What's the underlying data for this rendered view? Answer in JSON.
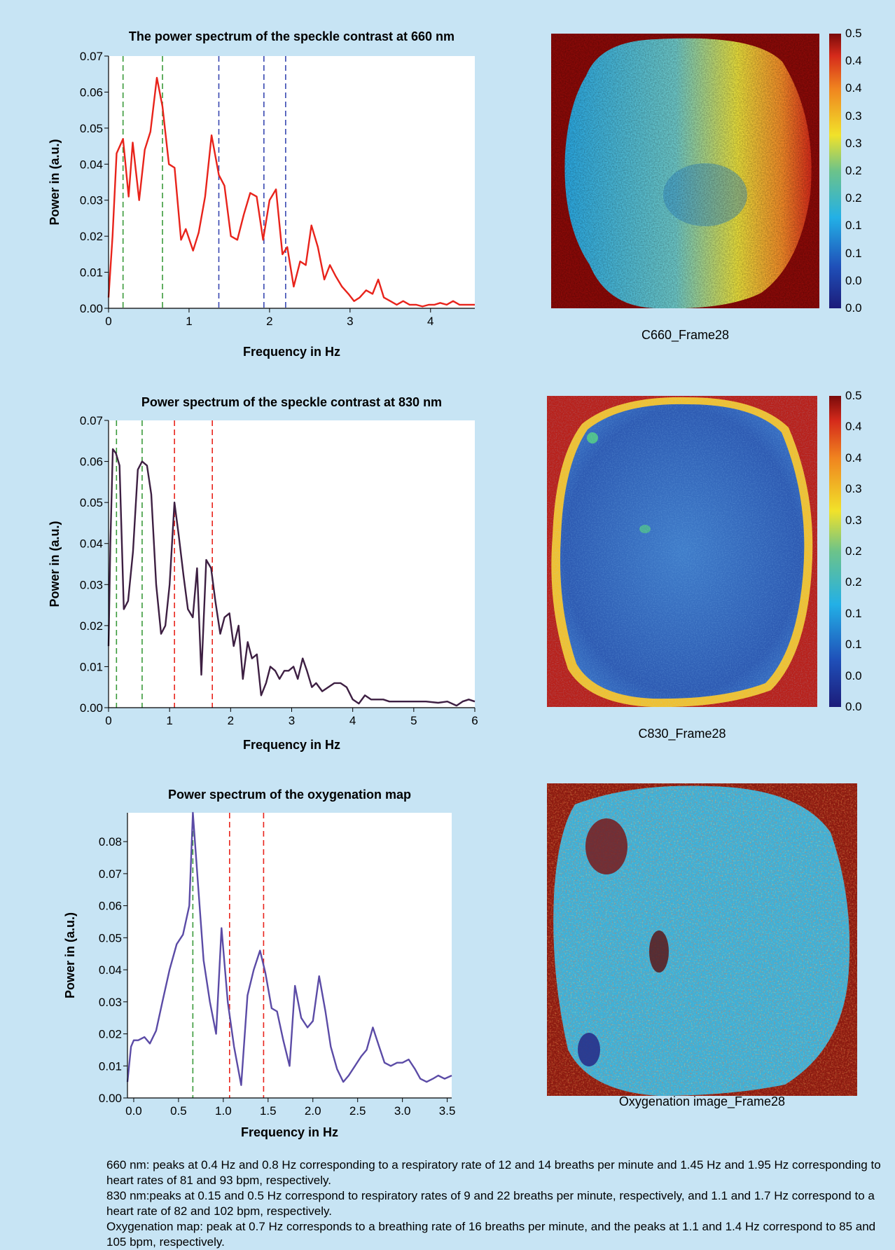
{
  "colors": {
    "background": "#c7e4f4"
  },
  "charts": {
    "c660": {
      "map_caption": "C660_Frame28",
      "colorbar_labels": [
        "0.5",
        "0.4",
        "0.4",
        "0.3",
        "0.3",
        "0.2",
        "0.2",
        "0.1",
        "0.1",
        "0.0",
        "0.0"
      ]
    },
    "c830": {
      "map_caption": "C830_Frame28",
      "colorbar_labels": [
        "0.5",
        "0.4",
        "0.4",
        "0.3",
        "0.3",
        "0.2",
        "0.2",
        "0.1",
        "0.1",
        "0.0",
        "0.0"
      ]
    },
    "oxy": {
      "map_caption": "Oxygenation image_Frame28"
    }
  },
  "notes": [
    "660 nm: peaks at 0.4 Hz and 0.8 Hz corresponding to a respiratory rate of 12 and 14 breaths per minute and 1.45 Hz and 1.95 Hz corresponding to heart rates of 81 and 93 bpm, respectively.",
    "830 nm:peaks at 0.15 and 0.5 Hz correspond to respiratory rates of 9 and 22 breaths per minute, respectively, and 1.1 and 1.7 Hz correspond to a heart rate of 82 and 102 bpm, respectively.",
    "Oxygenation map: peak at 0.7 Hz corresponds to a breathing rate of 16 breaths per minute, and the peaks at 1.1 and 1.4 Hz correspond to 85 and 105 bpm, respectively."
  ],
  "chart_data": [
    {
      "type": "line",
      "title": "The power spectrum of the speckle contrast at 660 nm",
      "xlabel": "Frequency in Hz",
      "ylabel": "Power in (a.u.)",
      "xlim": [
        0,
        4.55
      ],
      "ylim": [
        0,
        0.07
      ],
      "xticks": [
        "0",
        "1",
        "2",
        "3",
        "4"
      ],
      "xtick_values": [
        0,
        1,
        2,
        3,
        4
      ],
      "yticks": [
        "0.00",
        "0.01",
        "0.02",
        "0.03",
        "0.04",
        "0.05",
        "0.06",
        "0.07"
      ],
      "ytick_values": [
        0,
        0.01,
        0.02,
        0.03,
        0.04,
        0.05,
        0.06,
        0.07
      ],
      "grid": false,
      "series": [
        {
          "color": "#e8231b",
          "x": [
            0,
            0.05,
            0.1,
            0.18,
            0.25,
            0.3,
            0.38,
            0.45,
            0.52,
            0.6,
            0.67,
            0.75,
            0.82,
            0.9,
            0.96,
            1.05,
            1.12,
            1.2,
            1.28,
            1.37,
            1.44,
            1.52,
            1.6,
            1.68,
            1.76,
            1.84,
            1.92,
            2.0,
            2.08,
            2.16,
            2.22,
            2.3,
            2.38,
            2.45,
            2.52,
            2.6,
            2.68,
            2.75,
            2.82,
            2.9,
            2.98,
            3.05,
            3.12,
            3.2,
            3.28,
            3.35,
            3.42,
            3.5,
            3.58,
            3.66,
            3.74,
            3.82,
            3.9,
            3.98,
            4.05,
            4.12,
            4.2,
            4.28,
            4.36,
            4.44,
            4.55
          ],
          "values": [
            0.003,
            0.02,
            0.043,
            0.047,
            0.031,
            0.046,
            0.03,
            0.044,
            0.049,
            0.064,
            0.056,
            0.04,
            0.039,
            0.019,
            0.022,
            0.016,
            0.021,
            0.031,
            0.048,
            0.037,
            0.034,
            0.02,
            0.019,
            0.026,
            0.032,
            0.031,
            0.019,
            0.03,
            0.033,
            0.015,
            0.017,
            0.006,
            0.013,
            0.012,
            0.023,
            0.017,
            0.008,
            0.012,
            0.009,
            0.006,
            0.004,
            0.002,
            0.003,
            0.005,
            0.004,
            0.008,
            0.003,
            0.002,
            0.001,
            0.002,
            0.001,
            0.001,
            0.0005,
            0.001,
            0.001,
            0.0015,
            0.001,
            0.002,
            0.001,
            0.001,
            0.001
          ]
        }
      ],
      "reference_lines": [
        {
          "x": 0.18,
          "color": "#3a9a3a"
        },
        {
          "x": 0.67,
          "color": "#3a9a3a"
        },
        {
          "x": 1.37,
          "color": "#3747b0"
        },
        {
          "x": 1.93,
          "color": "#3747b0"
        },
        {
          "x": 2.2,
          "color": "#3747b0"
        }
      ]
    },
    {
      "type": "line",
      "title": "Power spectrum of the speckle contrast at 830 nm",
      "xlabel": "Frequency in Hz",
      "ylabel": "Power in (a.u.)",
      "xlim": [
        0,
        6
      ],
      "ylim": [
        0,
        0.07
      ],
      "xticks": [
        "0",
        "1",
        "2",
        "3",
        "4",
        "5",
        "6"
      ],
      "xtick_values": [
        0,
        1,
        2,
        3,
        4,
        5,
        6
      ],
      "yticks": [
        "0.00",
        "0.01",
        "0.02",
        "0.03",
        "0.04",
        "0.05",
        "0.06",
        "0.07"
      ],
      "ytick_values": [
        0,
        0.01,
        0.02,
        0.03,
        0.04,
        0.05,
        0.06,
        0.07
      ],
      "grid": false,
      "series": [
        {
          "color": "#3d1f42",
          "x": [
            0,
            0.03,
            0.07,
            0.12,
            0.18,
            0.25,
            0.32,
            0.4,
            0.48,
            0.55,
            0.63,
            0.7,
            0.78,
            0.86,
            0.93,
            1.0,
            1.08,
            1.15,
            1.23,
            1.3,
            1.38,
            1.45,
            1.52,
            1.6,
            1.68,
            1.75,
            1.83,
            1.9,
            1.98,
            2.05,
            2.13,
            2.2,
            2.28,
            2.35,
            2.43,
            2.5,
            2.58,
            2.65,
            2.73,
            2.8,
            2.88,
            2.95,
            3.03,
            3.1,
            3.18,
            3.25,
            3.33,
            3.4,
            3.5,
            3.6,
            3.7,
            3.8,
            3.9,
            4.0,
            4.1,
            4.2,
            4.3,
            4.4,
            4.5,
            4.6,
            4.7,
            4.8,
            4.9,
            5.0,
            5.2,
            5.4,
            5.55,
            5.7,
            5.8,
            5.9,
            6.0
          ],
          "values": [
            0.015,
            0.04,
            0.063,
            0.062,
            0.059,
            0.024,
            0.026,
            0.038,
            0.058,
            0.06,
            0.059,
            0.052,
            0.03,
            0.018,
            0.02,
            0.03,
            0.05,
            0.042,
            0.032,
            0.024,
            0.022,
            0.034,
            0.008,
            0.036,
            0.034,
            0.026,
            0.018,
            0.022,
            0.023,
            0.015,
            0.02,
            0.007,
            0.016,
            0.012,
            0.013,
            0.003,
            0.006,
            0.01,
            0.009,
            0.007,
            0.009,
            0.009,
            0.01,
            0.007,
            0.012,
            0.009,
            0.005,
            0.006,
            0.004,
            0.005,
            0.006,
            0.006,
            0.005,
            0.002,
            0.001,
            0.003,
            0.002,
            0.002,
            0.002,
            0.0015,
            0.0015,
            0.0015,
            0.0015,
            0.0015,
            0.0015,
            0.0012,
            0.0015,
            0.0005,
            0.0015,
            0.002,
            0.0015
          ]
        }
      ],
      "reference_lines": [
        {
          "x": 0.13,
          "color": "#3a9a3a"
        },
        {
          "x": 0.55,
          "color": "#3a9a3a"
        },
        {
          "x": 1.08,
          "color": "#e8231b"
        },
        {
          "x": 1.7,
          "color": "#e8231b"
        }
      ]
    },
    {
      "type": "line",
      "title": "Power spectrum of the oxygenation map",
      "xlabel": "Frequency in Hz",
      "ylabel": "Power in (a.u.)",
      "xlim": [
        -0.07,
        3.55
      ],
      "ylim": [
        0,
        0.089
      ],
      "xticks": [
        "0.0",
        "0.5",
        "1.0",
        "1.5",
        "2.0",
        "2.5",
        "3.0",
        "3.5"
      ],
      "xtick_values": [
        0,
        0.5,
        1.0,
        1.5,
        2.0,
        2.5,
        3.0,
        3.5
      ],
      "yticks": [
        "0.00",
        "0.01",
        "0.02",
        "0.03",
        "0.04",
        "0.05",
        "0.06",
        "0.07",
        "0.08"
      ],
      "ytick_values": [
        0,
        0.01,
        0.02,
        0.03,
        0.04,
        0.05,
        0.06,
        0.07,
        0.08
      ],
      "grid": false,
      "series": [
        {
          "color": "#5b4ba6",
          "x": [
            -0.07,
            -0.03,
            0.0,
            0.05,
            0.12,
            0.18,
            0.25,
            0.32,
            0.4,
            0.48,
            0.55,
            0.62,
            0.66,
            0.72,
            0.78,
            0.85,
            0.92,
            0.98,
            1.05,
            1.12,
            1.2,
            1.27,
            1.34,
            1.41,
            1.47,
            1.54,
            1.6,
            1.67,
            1.74,
            1.8,
            1.87,
            1.94,
            2.0,
            2.07,
            2.14,
            2.2,
            2.27,
            2.34,
            2.4,
            2.47,
            2.54,
            2.6,
            2.67,
            2.74,
            2.8,
            2.87,
            2.94,
            3.0,
            3.07,
            3.14,
            3.2,
            3.27,
            3.34,
            3.4,
            3.47,
            3.55
          ],
          "values": [
            0.005,
            0.016,
            0.018,
            0.018,
            0.019,
            0.017,
            0.021,
            0.03,
            0.04,
            0.048,
            0.051,
            0.06,
            0.089,
            0.066,
            0.043,
            0.03,
            0.02,
            0.053,
            0.03,
            0.016,
            0.004,
            0.032,
            0.04,
            0.046,
            0.039,
            0.028,
            0.027,
            0.018,
            0.01,
            0.035,
            0.025,
            0.022,
            0.024,
            0.038,
            0.027,
            0.016,
            0.009,
            0.005,
            0.007,
            0.01,
            0.013,
            0.015,
            0.022,
            0.016,
            0.011,
            0.01,
            0.011,
            0.011,
            0.012,
            0.009,
            0.006,
            0.005,
            0.006,
            0.007,
            0.006,
            0.007
          ]
        }
      ],
      "reference_lines": [
        {
          "x": 0.66,
          "color": "#3a9a3a"
        },
        {
          "x": 1.07,
          "color": "#e8231b"
        },
        {
          "x": 1.45,
          "color": "#e8231b"
        }
      ]
    }
  ]
}
